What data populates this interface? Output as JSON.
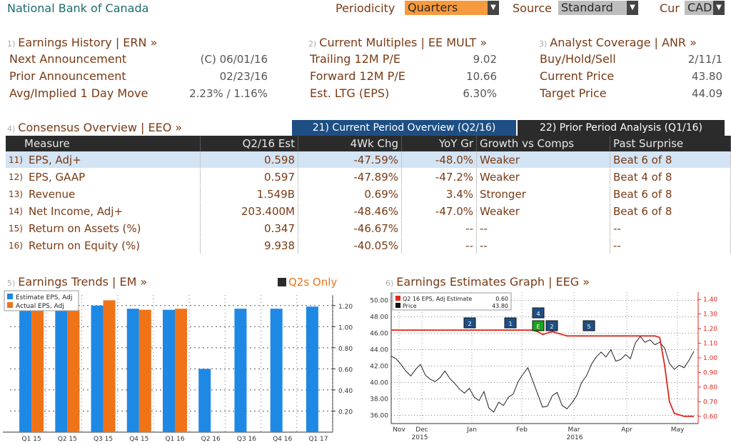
{
  "header": {
    "title": "National Bank of Canada",
    "periodicity_label": "Periodicity",
    "periodicity_value": "Quarters",
    "source_label": "Source",
    "source_value": "Standard",
    "cur_label": "Cur",
    "cur_value": "CAD"
  },
  "earnings_history": {
    "num": "1)",
    "title": "Earnings History | ERN »",
    "rows": [
      {
        "label": "Next Announcement",
        "value": "(C)  06/01/16"
      },
      {
        "label": "Prior Announcement",
        "value": "02/23/16"
      },
      {
        "label": "Avg/Implied 1 Day Move",
        "value": "2.23% / 1.16%"
      }
    ]
  },
  "current_multiples": {
    "num": "2)",
    "title": "Current Multiples | EE MULT »",
    "rows": [
      {
        "label": "Trailing 12M P/E",
        "value": "9.02"
      },
      {
        "label": "Forward 12M P/E",
        "value": "10.66"
      },
      {
        "label": "Est. LTG (EPS)",
        "value": "6.30%"
      }
    ]
  },
  "analyst_coverage": {
    "num": "3)",
    "title": "Analyst Coverage | ANR »",
    "rows": [
      {
        "label": "Buy/Hold/Sell",
        "value": "2/11/1"
      },
      {
        "label": "Current Price",
        "value": "43.80"
      },
      {
        "label": "Target Price",
        "value": "44.09"
      }
    ]
  },
  "consensus": {
    "num": "4)",
    "title": "Consensus Overview | EEO »",
    "tab1": "21) Current Period Overview (Q2/16)",
    "tab2": "22) Prior Period Analysis (Q1/16)",
    "headers": [
      "Measure",
      "Q2/16 Est",
      "4Wk Chg",
      "YoY Gr",
      "Growth vs Comps",
      "Past Surprise"
    ],
    "rows": [
      {
        "idx": "11)",
        "measure": "EPS, Adj+",
        "est": "0.598",
        "chg": "-47.59%",
        "yoy": "-48.0%",
        "growth": "Weaker",
        "surprise": "Beat 6 of 8"
      },
      {
        "idx": "12)",
        "measure": "EPS, GAAP",
        "est": "0.597",
        "chg": "-47.89%",
        "yoy": "-47.2%",
        "growth": "Weaker",
        "surprise": "Beat 4 of 8"
      },
      {
        "idx": "13)",
        "measure": "Revenue",
        "est": "1.549B",
        "chg": "0.69%",
        "yoy": "3.4%",
        "growth": "Stronger",
        "surprise": "Beat 6 of 8"
      },
      {
        "idx": "14)",
        "measure": "Net Income, Adj+",
        "est": "203.400M",
        "chg": "-48.46%",
        "yoy": "-47.0%",
        "growth": "Weaker",
        "surprise": "Beat 6 of 8"
      },
      {
        "idx": "15)",
        "measure": "Return on Assets (%)",
        "est": "0.347",
        "chg": "-46.67%",
        "yoy": "--",
        "growth": "--",
        "surprise": "--"
      },
      {
        "idx": "16)",
        "measure": "Return on Equity (%)",
        "est": "9.938",
        "chg": "-40.05%",
        "yoy": "--",
        "growth": "--",
        "surprise": "--"
      }
    ]
  },
  "earnings_trends": {
    "num": "5)",
    "title": "Earnings Trends | EM »",
    "toggle_label": "Q2s Only"
  },
  "earnings_graph": {
    "num": "6)",
    "title": "Earnings Estimates Graph | EEG »"
  },
  "colors": {
    "estimate": "#1e88e5",
    "actual": "#f07318",
    "red_line": "#e0281e",
    "accent": "#1e4f84"
  },
  "chart_data": [
    {
      "type": "bar",
      "categories": [
        "Q1 15",
        "Q2 15",
        "Q3 15",
        "Q4 15",
        "Q1 16",
        "Q2 16",
        "Q3 16",
        "Q4 16",
        "Q1 17"
      ],
      "series": [
        {
          "name": "Estimate EPS, Adj",
          "values": [
            1.15,
            1.15,
            1.2,
            1.17,
            1.16,
            0.6,
            1.17,
            1.17,
            1.19
          ]
        },
        {
          "name": "Actual EPS, Adj",
          "values": [
            1.16,
            1.16,
            1.25,
            1.16,
            1.17,
            null,
            null,
            null,
            null
          ]
        }
      ],
      "ylim": [
        0,
        1.3
      ],
      "yticks": [
        "1.20",
        "1.00",
        "0.80",
        "0.60",
        "0.40",
        "0.20"
      ],
      "legend": "top-left"
    },
    {
      "type": "line",
      "legend_items": [
        {
          "name": "Q2 16 EPS, Adj Estimate",
          "value": "0.60"
        },
        {
          "name": "Price",
          "value": "43.80"
        }
      ],
      "left_ticks": [
        "50.00",
        "48.00",
        "46.00",
        "44.00",
        "42.00",
        "40.00",
        "38.00",
        "36.00"
      ],
      "right_ticks": [
        "1.40",
        "1.30",
        "1.20",
        "1.10",
        "1.00",
        "0.90",
        "0.80",
        "0.70",
        "0.60"
      ],
      "x_labels": [
        "Nov",
        "Dec",
        "Jan",
        "Feb",
        "Mar",
        "Apr",
        "May"
      ],
      "x_years": [
        "2015",
        "2016"
      ],
      "left_ylim": [
        35,
        51
      ],
      "right_ylim": [
        0.55,
        1.45
      ],
      "price": [
        43.2,
        42.9,
        42.2,
        41.4,
        40.8,
        41.6,
        42.2,
        40.9,
        40.4,
        40.1,
        40.6,
        41.4,
        40.5,
        39.9,
        39.2,
        38.7,
        39.3,
        38.2,
        37.8,
        38.9,
        36.9,
        36.4,
        37.6,
        37.2,
        38.2,
        38.6,
        40.1,
        41.0,
        41.8,
        40.2,
        38.6,
        37.0,
        37.1,
        38.4,
        38.8,
        37.2,
        36.8,
        37.5,
        38.4,
        40.0,
        40.8,
        42.2,
        43.1,
        43.7,
        43.1,
        44.0,
        42.6,
        42.8,
        43.4,
        42.9,
        44.8,
        45.6,
        44.9,
        45.2,
        44.6,
        44.9,
        44.2,
        42.3,
        41.6,
        42.1,
        41.8,
        42.7,
        43.8
      ],
      "estimate": [
        1.19,
        1.19,
        1.19,
        1.19,
        1.19,
        1.19,
        1.19,
        1.19,
        1.19,
        1.19,
        1.19,
        1.19,
        1.19,
        1.19,
        1.19,
        1.19,
        1.19,
        1.19,
        1.19,
        1.19,
        1.19,
        1.19,
        1.19,
        1.19,
        1.19,
        1.19,
        1.19,
        1.19,
        1.19,
        1.19,
        1.18,
        1.16,
        1.17,
        1.18,
        1.17,
        1.16,
        1.15,
        1.15,
        1.15,
        1.15,
        1.15,
        1.15,
        1.15,
        1.15,
        1.15,
        1.15,
        1.15,
        1.15,
        1.15,
        1.15,
        1.15,
        1.15,
        1.15,
        1.15,
        1.15,
        1.14,
        0.95,
        0.7,
        0.62,
        0.61,
        0.6,
        0.6,
        0.6
      ],
      "markers": [
        {
          "label": "2",
          "color": "#1e4f84"
        },
        {
          "label": "1",
          "color": "#1e4f84"
        },
        {
          "label": "4",
          "color": "#1e4f84"
        },
        {
          "label": "E",
          "color": "#18a51d"
        },
        {
          "label": "2",
          "color": "#1e4f84"
        },
        {
          "label": "5",
          "color": "#1e4f84"
        }
      ]
    }
  ]
}
